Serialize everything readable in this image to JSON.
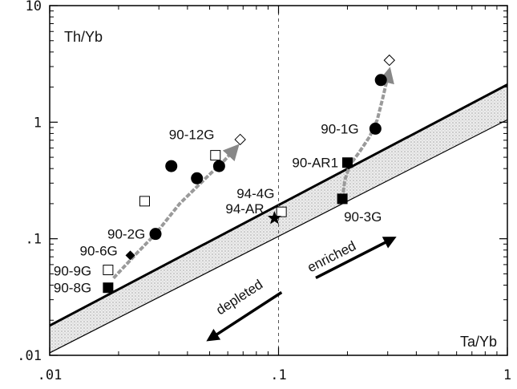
{
  "chart_data": {
    "type": "scatter",
    "title": "",
    "xlabel": "Ta/Yb",
    "ylabel": "Th/Yb",
    "xscale": "log",
    "yscale": "log",
    "xlim": [
      0.01,
      1
    ],
    "ylim": [
      0.01,
      10
    ],
    "x_ticks": [
      {
        "value": 0.01,
        "label": ".01"
      },
      {
        "value": 0.1,
        "label": ".1"
      },
      {
        "value": 1,
        "label": "1"
      }
    ],
    "y_ticks": [
      {
        "value": 0.01,
        "label": ".01"
      },
      {
        "value": 0.1,
        "label": ".1"
      },
      {
        "value": 1,
        "label": "1"
      },
      {
        "value": 10,
        "label": "10"
      }
    ],
    "reference_line_x": 0.1,
    "mantle_array": {
      "upper": [
        [
          0.01,
          0.018
        ],
        [
          1,
          2.1
        ]
      ],
      "lower": [
        [
          0.01,
          0.0105
        ],
        [
          1,
          1.05
        ]
      ]
    },
    "points": [
      {
        "id": "90-8G",
        "label": "90-8G",
        "x": 0.018,
        "y": 0.038,
        "marker": "filled-square"
      },
      {
        "id": "90-9G",
        "label": "90-9G",
        "x": 0.018,
        "y": 0.054,
        "marker": "open-square"
      },
      {
        "id": "90-6G",
        "label": "90-6G",
        "x": 0.0225,
        "y": 0.072,
        "marker": "filled-diamond"
      },
      {
        "id": "90-2G",
        "label": "90-2G",
        "x": 0.029,
        "y": 0.11,
        "marker": "filled-circle"
      },
      {
        "id": "g1",
        "label": "",
        "x": 0.026,
        "y": 0.21,
        "marker": "open-square"
      },
      {
        "id": "g2",
        "label": "",
        "x": 0.034,
        "y": 0.42,
        "marker": "filled-circle"
      },
      {
        "id": "g3",
        "label": "",
        "x": 0.044,
        "y": 0.33,
        "marker": "filled-circle"
      },
      {
        "id": "g4",
        "label": "",
        "x": 0.055,
        "y": 0.42,
        "marker": "filled-circle"
      },
      {
        "id": "90-12G",
        "label": "90-12G",
        "x": 0.053,
        "y": 0.52,
        "marker": "open-square"
      },
      {
        "id": "g5",
        "label": "",
        "x": 0.068,
        "y": 0.71,
        "marker": "open-diamond"
      },
      {
        "id": "94-4G",
        "label": "94-4G",
        "x": 0.103,
        "y": 0.17,
        "marker": "open-square"
      },
      {
        "id": "94-AR",
        "label": "94-AR",
        "x": 0.096,
        "y": 0.15,
        "marker": "filled-star"
      },
      {
        "id": "90-3G",
        "label": "90-3G",
        "x": 0.19,
        "y": 0.22,
        "marker": "filled-square"
      },
      {
        "id": "90-AR1",
        "label": "90-AR1",
        "x": 0.2,
        "y": 0.45,
        "marker": "filled-square"
      },
      {
        "id": "90-1G",
        "label": "90-1G",
        "x": 0.265,
        "y": 0.88,
        "marker": "filled-circle"
      },
      {
        "id": "g6",
        "label": "",
        "x": 0.28,
        "y": 2.3,
        "marker": "filled-circle"
      },
      {
        "id": "g7",
        "label": "",
        "x": 0.305,
        "y": 3.4,
        "marker": "open-diamond"
      }
    ],
    "trends": [
      {
        "name": "left-trend",
        "points": [
          [
            0.019,
            0.046
          ],
          [
            0.024,
            0.075
          ],
          [
            0.029,
            0.11
          ],
          [
            0.037,
            0.2
          ],
          [
            0.048,
            0.33
          ],
          [
            0.058,
            0.47
          ],
          [
            0.066,
            0.62
          ]
        ]
      },
      {
        "name": "right-trend",
        "points": [
          [
            0.19,
            0.22
          ],
          [
            0.195,
            0.32
          ],
          [
            0.205,
            0.43
          ],
          [
            0.225,
            0.55
          ],
          [
            0.25,
            0.75
          ],
          [
            0.27,
            1.05
          ],
          [
            0.285,
            1.6
          ],
          [
            0.305,
            2.8
          ]
        ]
      }
    ],
    "annotations": [
      {
        "text": "enriched",
        "direction": "up-right"
      },
      {
        "text": "depleted",
        "direction": "down-left"
      }
    ]
  }
}
